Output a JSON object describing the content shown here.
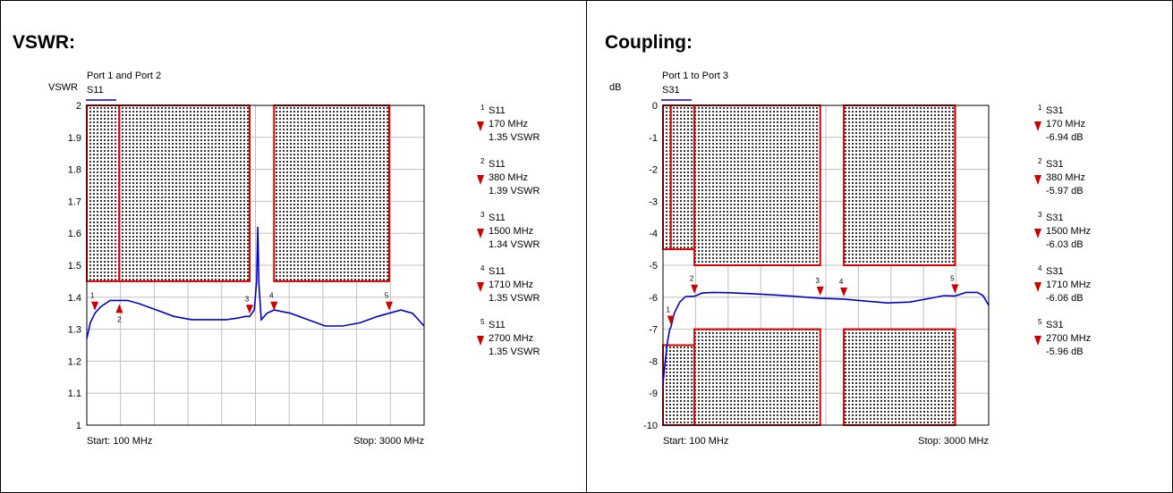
{
  "colors": {
    "trace": "#0000cc",
    "limit": "#dd0000",
    "marker": "#cc0000",
    "grid": "#c0c0c0"
  },
  "chart_data": [
    {
      "type": "line",
      "panel_title": "VSWR:",
      "subtitle": "Port 1 and Port 2",
      "ylabel": "VSWR",
      "legend": "S11",
      "xlabel_start": "Start: 100 MHz",
      "xlabel_stop": "Stop: 3000 MHz",
      "xlim": [
        100,
        3000
      ],
      "ylim": [
        1,
        2
      ],
      "y_ticks": [
        "2",
        "1.9",
        "1.8",
        "1.7",
        "1.6",
        "1.5",
        "1.4",
        "1.3",
        "1.2",
        "1.1",
        "1"
      ],
      "grid": true,
      "series": [
        {
          "name": "S11",
          "x": [
            100,
            130,
            170,
            220,
            300,
            380,
            450,
            550,
            700,
            850,
            1000,
            1150,
            1300,
            1400,
            1460,
            1500,
            1540,
            1560,
            1570,
            1580,
            1600,
            1650,
            1710,
            1850,
            2000,
            2150,
            2300,
            2450,
            2600,
            2700,
            2800,
            2900,
            3000
          ],
          "y": [
            1.27,
            1.32,
            1.35,
            1.37,
            1.39,
            1.39,
            1.39,
            1.38,
            1.36,
            1.34,
            1.33,
            1.33,
            1.33,
            1.335,
            1.34,
            1.34,
            1.36,
            1.45,
            1.62,
            1.44,
            1.33,
            1.35,
            1.36,
            1.35,
            1.33,
            1.31,
            1.31,
            1.32,
            1.34,
            1.35,
            1.36,
            1.35,
            1.31
          ]
        }
      ],
      "limits": [
        {
          "x1": 100,
          "x2": 380,
          "y1": 1.45,
          "y2": 2
        },
        {
          "x1": 380,
          "x2": 1500,
          "y1": 1.45,
          "y2": 2
        },
        {
          "x1": 1710,
          "x2": 2700,
          "y1": 1.45,
          "y2": 2
        }
      ],
      "markers": [
        {
          "n": "1",
          "x": 170,
          "y": 1.35,
          "freq": "170 MHz",
          "value": "1.35 VSWR"
        },
        {
          "n": "2",
          "x": 380,
          "y": 1.39,
          "freq": "380 MHz",
          "value": "1.39 VSWR"
        },
        {
          "n": "3",
          "x": 1500,
          "y": 1.34,
          "freq": "1500 MHz",
          "value": "1.34 VSWR"
        },
        {
          "n": "4",
          "x": 1710,
          "y": 1.35,
          "freq": "1710 MHz",
          "value": "1.35 VSWR"
        },
        {
          "n": "5",
          "x": 2700,
          "y": 1.35,
          "freq": "2700 MHz",
          "value": "1.35 VSWR"
        }
      ]
    },
    {
      "type": "line",
      "panel_title": "Coupling:",
      "subtitle": "Port 1 to Port 3",
      "ylabel": "dB",
      "legend": "S31",
      "xlabel_start": "Start: 100 MHz",
      "xlabel_stop": "Stop: 3000 MHz",
      "xlim": [
        100,
        3000
      ],
      "ylim": [
        -10,
        0
      ],
      "y_ticks": [
        "0",
        "-1",
        "-2",
        "-3",
        "-4",
        "-5",
        "-6",
        "-7",
        "-8",
        "-9",
        "-10"
      ],
      "grid": true,
      "series": [
        {
          "name": "S31",
          "x": [
            100,
            120,
            140,
            160,
            170,
            200,
            250,
            300,
            380,
            450,
            550,
            700,
            900,
            1100,
            1300,
            1500,
            1710,
            1900,
            2100,
            2300,
            2500,
            2600,
            2700,
            2800,
            2900,
            2950,
            3000
          ],
          "y": [
            -8.7,
            -8.0,
            -7.4,
            -7.0,
            -6.94,
            -6.5,
            -6.15,
            -5.98,
            -5.97,
            -5.87,
            -5.85,
            -5.86,
            -5.89,
            -5.93,
            -5.98,
            -6.03,
            -6.06,
            -6.12,
            -6.18,
            -6.15,
            -6.02,
            -5.95,
            -5.96,
            -5.85,
            -5.85,
            -5.95,
            -6.25
          ]
        }
      ],
      "limits": [
        {
          "x1": 100,
          "x2": 170,
          "y1": -4.5,
          "y2": 0
        },
        {
          "x1": 170,
          "x2": 380,
          "y1": -4.5,
          "y2": 0
        },
        {
          "x1": 380,
          "x2": 1500,
          "y1": -5,
          "y2": 0
        },
        {
          "x1": 1710,
          "x2": 2700,
          "y1": -5,
          "y2": 0
        },
        {
          "x1": 100,
          "x2": 380,
          "y1": -10,
          "y2": -7.5
        },
        {
          "x1": 380,
          "x2": 1500,
          "y1": -10,
          "y2": -7
        },
        {
          "x1": 1710,
          "x2": 2700,
          "y1": -10,
          "y2": -7
        }
      ],
      "markers": [
        {
          "n": "1",
          "x": 170,
          "y": -6.94,
          "freq": "170 MHz",
          "value": "-6.94 dB"
        },
        {
          "n": "2",
          "x": 380,
          "y": -5.97,
          "freq": "380 MHz",
          "value": "-5.97 dB"
        },
        {
          "n": "3",
          "x": 1500,
          "y": -6.03,
          "freq": "1500 MHz",
          "value": "-6.03 dB"
        },
        {
          "n": "4",
          "x": 1710,
          "y": -6.06,
          "freq": "1710 MHz",
          "value": "-6.06 dB"
        },
        {
          "n": "5",
          "x": 2700,
          "y": -5.96,
          "freq": "2700 MHz",
          "value": "-5.96 dB"
        }
      ]
    }
  ]
}
